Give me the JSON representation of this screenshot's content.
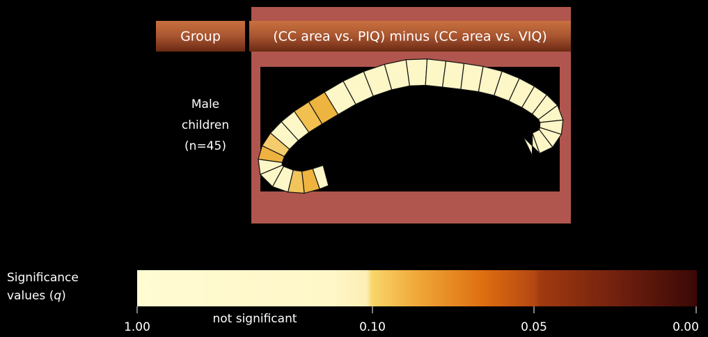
{
  "header": {
    "group": "Group",
    "title": "(CC area vs. PIQ) minus (CC area vs. VIQ)"
  },
  "row": {
    "label_lines": [
      "Male",
      "children",
      "(n=45)"
    ]
  },
  "colorbar": {
    "title_lines": [
      "Significance",
      "values ("
    ],
    "title_symbol": "q",
    "title_close": ")",
    "ticks": [
      "1.00",
      "0.10",
      "0.05",
      "0.00"
    ],
    "note": "not significant"
  }
}
